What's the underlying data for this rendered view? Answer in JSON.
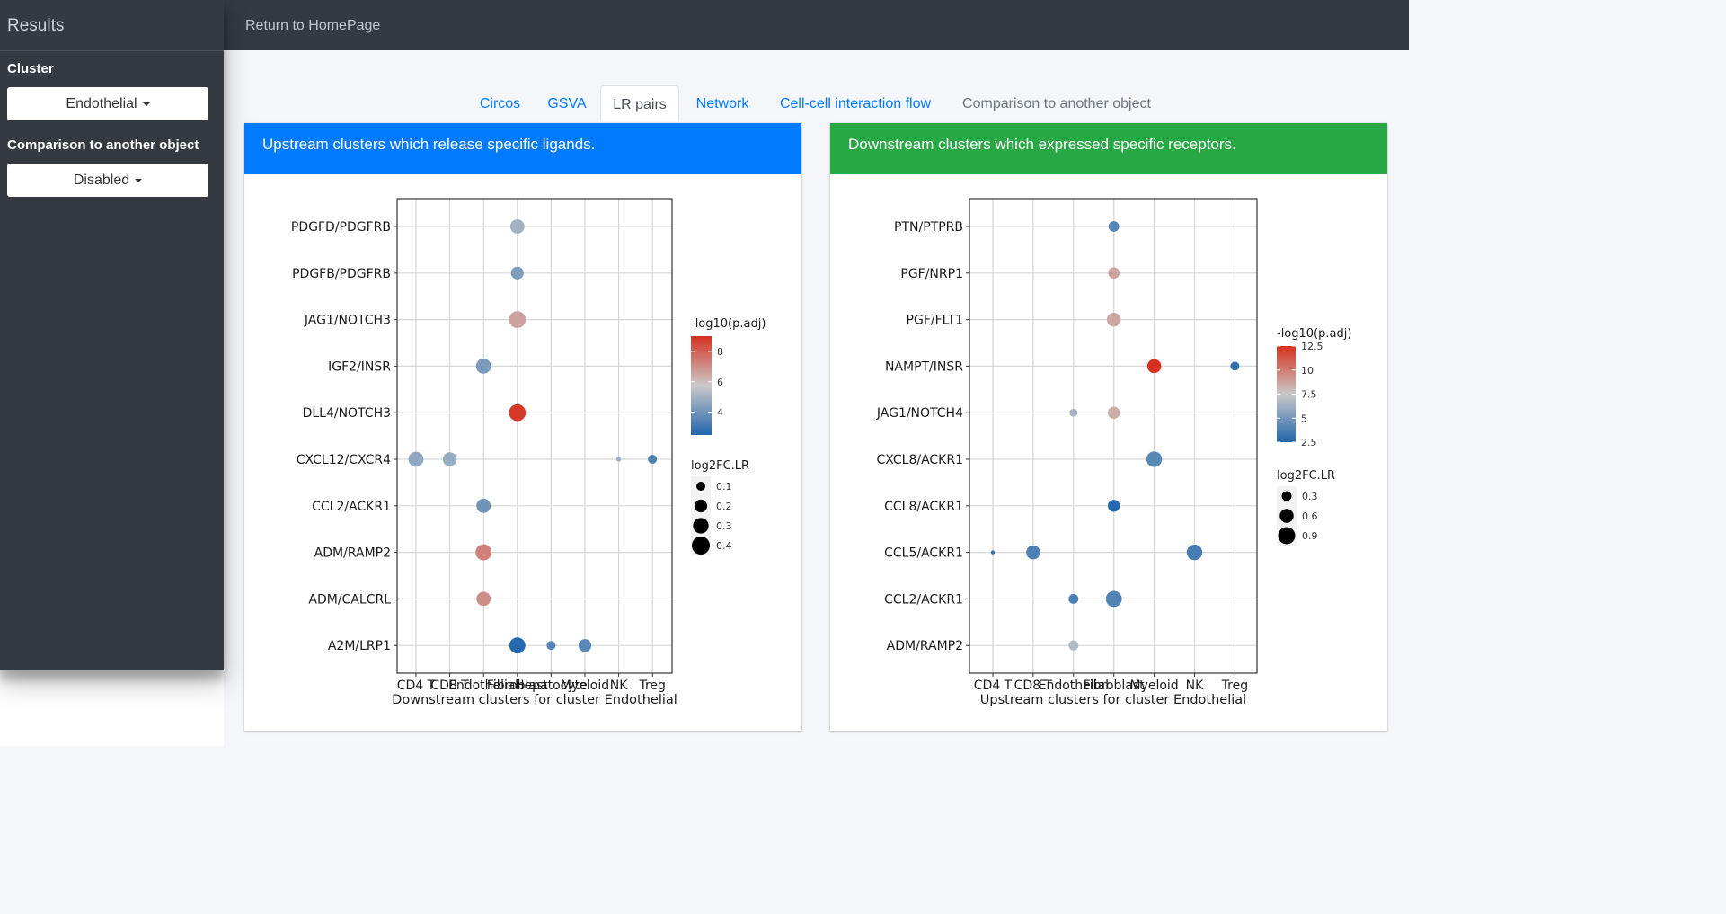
{
  "sidebar": {
    "brand": "Results",
    "cluster_label": "Cluster",
    "cluster_value": "Endothelial",
    "comparison_label": "Comparison to another object",
    "comparison_value": "Disabled"
  },
  "topbar": {
    "home_link": "Return to HomePage"
  },
  "tabs": [
    {
      "label": "Circos",
      "state": "link"
    },
    {
      "label": "GSVA",
      "state": "link"
    },
    {
      "label": "LR pairs",
      "state": "active"
    },
    {
      "label": "Network",
      "state": "link"
    },
    {
      "label": "Cell-cell interaction flow",
      "state": "link"
    },
    {
      "label": "Comparison to another object",
      "state": "muted"
    }
  ],
  "colors": {
    "sidebar_bg": "#343a40",
    "link": "#007bff",
    "card_left_header": "#007bff",
    "card_right_header": "#28a745",
    "scale_low": "#2166ac",
    "scale_mid": "#c9c9c9",
    "scale_high": "#d7301f"
  },
  "cards": [
    {
      "header": "Upstream clusters which release specific ligands.",
      "header_color": "#007bff"
    },
    {
      "header": "Downstream clusters which expressed specific receptors.",
      "header_color": "#28a745"
    }
  ],
  "chart_data": [
    {
      "type": "scatter",
      "xlabel": "Downstream clusters for cluster Endothelial",
      "ylabel": "",
      "x_categories": [
        "CD4 T",
        "CD8 T",
        "Endothelial",
        "Fibroblast",
        "Hepatocyte",
        "Myeloid",
        "NK",
        "Treg"
      ],
      "y_categories": [
        "PDGFD/PDGFRB",
        "PDGFB/PDGFRB",
        "JAG1/NOTCH3",
        "IGF2/INSR",
        "DLL4/NOTCH3",
        "CXCL12/CXCR4",
        "CCL2/ACKR1",
        "ADM/RAMP2",
        "ADM/CALCRL",
        "A2M/LRP1"
      ],
      "color_legend": {
        "title": "-log10(p.adj)",
        "min": 2.5,
        "max": 9,
        "ticks": [
          4,
          6,
          8
        ]
      },
      "size_legend": {
        "title": "log2FC.LR",
        "ticks": [
          0.1,
          0.2,
          0.3,
          0.4
        ],
        "min": 0.0,
        "max": 0.4
      },
      "grid": true,
      "points": [
        {
          "x": "Fibroblast",
          "y": "PDGFD/PDGFRB",
          "color": 5.0,
          "size": 0.25
        },
        {
          "x": "Fibroblast",
          "y": "PDGFB/PDGFRB",
          "color": 4.3,
          "size": 0.2
        },
        {
          "x": "Fibroblast",
          "y": "JAG1/NOTCH3",
          "color": 6.6,
          "size": 0.35
        },
        {
          "x": "Endothelial",
          "y": "IGF2/INSR",
          "color": 4.2,
          "size": 0.28
        },
        {
          "x": "Fibroblast",
          "y": "DLL4/NOTCH3",
          "color": 8.8,
          "size": 0.35
        },
        {
          "x": "CD4 T",
          "y": "CXCL12/CXCR4",
          "color": 4.6,
          "size": 0.28
        },
        {
          "x": "CD8 T",
          "y": "CXCL12/CXCR4",
          "color": 4.8,
          "size": 0.24
        },
        {
          "x": "NK",
          "y": "CXCL12/CXCR4",
          "color": 4.9,
          "size": 0.03
        },
        {
          "x": "Treg",
          "y": "CXCL12/CXCR4",
          "color": 3.4,
          "size": 0.1
        },
        {
          "x": "Endothelial",
          "y": "CCL2/ACKR1",
          "color": 4.0,
          "size": 0.25
        },
        {
          "x": "Endothelial",
          "y": "ADM/RAMP2",
          "color": 7.3,
          "size": 0.32
        },
        {
          "x": "Endothelial",
          "y": "ADM/CALCRL",
          "color": 7.0,
          "size": 0.25
        },
        {
          "x": "Fibroblast",
          "y": "A2M/LRP1",
          "color": 2.6,
          "size": 0.32
        },
        {
          "x": "Hepatocyte",
          "y": "A2M/LRP1",
          "color": 3.5,
          "size": 0.1
        },
        {
          "x": "Myeloid",
          "y": "A2M/LRP1",
          "color": 3.6,
          "size": 0.2
        }
      ]
    },
    {
      "type": "scatter",
      "xlabel": "Upstream clusters for cluster Endothelial",
      "ylabel": "",
      "x_categories": [
        "CD4 T",
        "CD8 T",
        "Endothelial",
        "Fibroblast",
        "Myeloid",
        "NK",
        "Treg"
      ],
      "y_categories": [
        "PTN/PTPRB",
        "PGF/NRP1",
        "PGF/FLT1",
        "NAMPT/INSR",
        "JAG1/NOTCH4",
        "CXCL8/ACKR1",
        "CCL8/ACKR1",
        "CCL5/ACKR1",
        "CCL2/ACKR1",
        "ADM/RAMP2"
      ],
      "color_legend": {
        "title": "-log10(p.adj)",
        "min": 2.5,
        "max": 12.5,
        "ticks": [
          2.5,
          5.0,
          7.5,
          10.0,
          12.5
        ]
      },
      "size_legend": {
        "title": "log2FC.LR",
        "ticks": [
          0.3,
          0.6,
          0.9
        ],
        "min": 0.0,
        "max": 1.0
      },
      "grid": true,
      "points": [
        {
          "x": "Fibroblast",
          "y": "PTN/PTPRB",
          "color": 4.0,
          "size": 0.35
        },
        {
          "x": "Fibroblast",
          "y": "PGF/NRP1",
          "color": 8.8,
          "size": 0.4
        },
        {
          "x": "Fibroblast",
          "y": "PGF/FLT1",
          "color": 8.6,
          "size": 0.6
        },
        {
          "x": "Myeloid",
          "y": "NAMPT/INSR",
          "color": 12.5,
          "size": 0.6
        },
        {
          "x": "Treg",
          "y": "NAMPT/INSR",
          "color": 3.0,
          "size": 0.25
        },
        {
          "x": "Endothelial",
          "y": "JAG1/NOTCH4",
          "color": 6.5,
          "size": 0.2
        },
        {
          "x": "Fibroblast",
          "y": "JAG1/NOTCH4",
          "color": 8.4,
          "size": 0.45
        },
        {
          "x": "Myeloid",
          "y": "CXCL8/ACKR1",
          "color": 4.2,
          "size": 0.75
        },
        {
          "x": "Fibroblast",
          "y": "CCL8/ACKR1",
          "color": 2.6,
          "size": 0.45
        },
        {
          "x": "CD4 T",
          "y": "CCL5/ACKR1",
          "color": 3.2,
          "size": 0.05
        },
        {
          "x": "CD8 T",
          "y": "CCL5/ACKR1",
          "color": 3.8,
          "size": 0.6
        },
        {
          "x": "NK",
          "y": "CCL5/ACKR1",
          "color": 3.6,
          "size": 0.75
        },
        {
          "x": "Endothelial",
          "y": "CCL2/ACKR1",
          "color": 3.8,
          "size": 0.3
        },
        {
          "x": "Fibroblast",
          "y": "CCL2/ACKR1",
          "color": 4.0,
          "size": 0.8
        },
        {
          "x": "Endothelial",
          "y": "ADM/RAMP2",
          "color": 6.8,
          "size": 0.3
        }
      ]
    }
  ]
}
